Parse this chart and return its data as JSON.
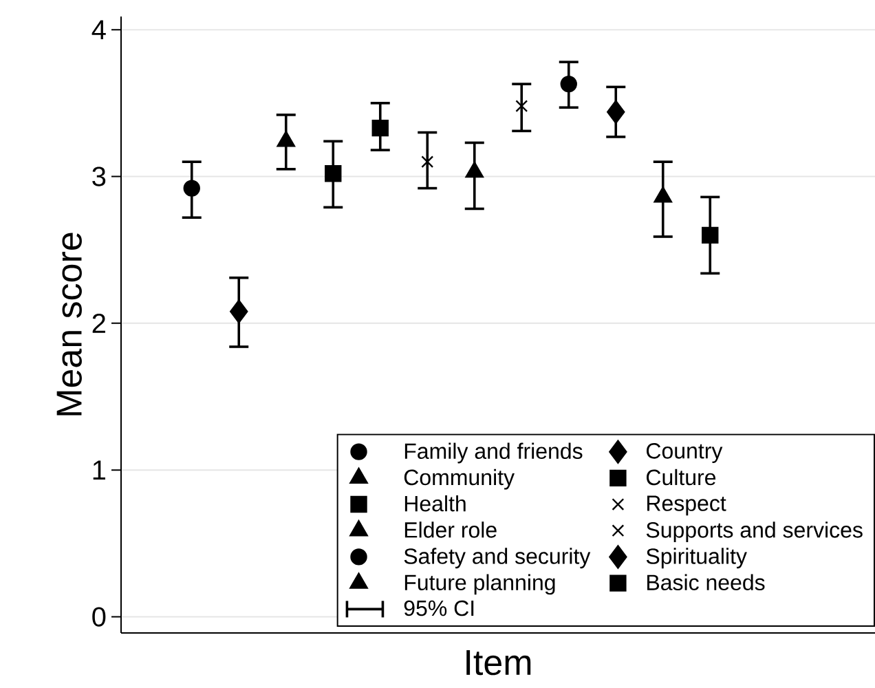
{
  "chart_data": {
    "type": "scatter",
    "xlabel": "Item",
    "ylabel": "Mean score",
    "categories": [
      null,
      null,
      null,
      null,
      null,
      null,
      null,
      null,
      null,
      null,
      null,
      null,
      null,
      null,
      null,
      null
    ],
    "ylim": [
      -0.11,
      4.09
    ],
    "yticks": [
      0,
      1,
      2,
      3,
      4
    ],
    "grid": "y",
    "legend": "bottom right",
    "annotations": [
      "95% CI"
    ],
    "series": [
      {
        "name": "Family and friends",
        "color": "#000000",
        "marker": "circle",
        "values": [
          null,
          2.92,
          null,
          null,
          null,
          null,
          null,
          null,
          null,
          null,
          null,
          null,
          null,
          null,
          null,
          null
        ],
        "errors": [
          null,
          [
            2.72,
            3.1
          ],
          null,
          null,
          null,
          null,
          null,
          null,
          null,
          null,
          null,
          null,
          null,
          null,
          null,
          null
        ]
      },
      {
        "name": "Country",
        "color": "#000000",
        "marker": "diamond",
        "values": [
          null,
          null,
          2.08,
          null,
          null,
          null,
          null,
          null,
          null,
          null,
          null,
          null,
          null,
          null,
          null,
          null
        ],
        "errors": [
          null,
          null,
          [
            1.84,
            2.31
          ],
          null,
          null,
          null,
          null,
          null,
          null,
          null,
          null,
          null,
          null,
          null,
          null,
          null
        ]
      },
      {
        "name": "Community",
        "color": "#000000",
        "marker": "triangle",
        "values": [
          null,
          null,
          null,
          3.24,
          null,
          null,
          null,
          null,
          null,
          null,
          null,
          null,
          null,
          null,
          null,
          null
        ],
        "errors": [
          null,
          null,
          null,
          [
            3.05,
            3.42
          ],
          null,
          null,
          null,
          null,
          null,
          null,
          null,
          null,
          null,
          null,
          null,
          null
        ]
      },
      {
        "name": "Culture",
        "color": "#000000",
        "marker": "square",
        "values": [
          null,
          null,
          null,
          null,
          3.02,
          null,
          null,
          null,
          null,
          null,
          null,
          null,
          null,
          null,
          null,
          null
        ],
        "errors": [
          null,
          null,
          null,
          null,
          [
            2.79,
            3.24
          ],
          null,
          null,
          null,
          null,
          null,
          null,
          null,
          null,
          null,
          null,
          null
        ]
      },
      {
        "name": "Health",
        "color": "#000000",
        "marker": "square",
        "values": [
          null,
          null,
          null,
          null,
          null,
          3.33,
          null,
          null,
          null,
          null,
          null,
          null,
          null,
          null,
          null,
          null
        ],
        "errors": [
          null,
          null,
          null,
          null,
          null,
          [
            3.18,
            3.5
          ],
          null,
          null,
          null,
          null,
          null,
          null,
          null,
          null,
          null,
          null
        ]
      },
      {
        "name": "Respect",
        "color": "#000000",
        "marker": "cross",
        "values": [
          null,
          null,
          null,
          null,
          null,
          null,
          3.1,
          null,
          null,
          null,
          null,
          null,
          null,
          null,
          null,
          null
        ],
        "errors": [
          null,
          null,
          null,
          null,
          null,
          null,
          [
            2.92,
            3.3
          ],
          null,
          null,
          null,
          null,
          null,
          null,
          null,
          null,
          null
        ]
      },
      {
        "name": "Elder role",
        "color": "#000000",
        "marker": "triangle",
        "values": [
          null,
          null,
          null,
          null,
          null,
          null,
          null,
          3.03,
          null,
          null,
          null,
          null,
          null,
          null,
          null,
          null
        ],
        "errors": [
          null,
          null,
          null,
          null,
          null,
          null,
          null,
          [
            2.78,
            3.23
          ],
          null,
          null,
          null,
          null,
          null,
          null,
          null,
          null
        ]
      },
      {
        "name": "Supports and services",
        "color": "#000000",
        "marker": "cross",
        "values": [
          null,
          null,
          null,
          null,
          null,
          null,
          null,
          null,
          3.48,
          null,
          null,
          null,
          null,
          null,
          null,
          null
        ],
        "errors": [
          null,
          null,
          null,
          null,
          null,
          null,
          null,
          null,
          [
            3.31,
            3.63
          ],
          null,
          null,
          null,
          null,
          null,
          null,
          null
        ]
      },
      {
        "name": "Safety and security",
        "color": "#000000",
        "marker": "circle",
        "values": [
          null,
          null,
          null,
          null,
          null,
          null,
          null,
          null,
          null,
          3.63,
          null,
          null,
          null,
          null,
          null,
          null
        ],
        "errors": [
          null,
          null,
          null,
          null,
          null,
          null,
          null,
          null,
          null,
          [
            3.47,
            3.78
          ],
          null,
          null,
          null,
          null,
          null,
          null
        ]
      },
      {
        "name": "Spirituality",
        "color": "#000000",
        "marker": "diamond",
        "values": [
          null,
          null,
          null,
          null,
          null,
          null,
          null,
          null,
          null,
          null,
          3.44,
          null,
          null,
          null,
          null,
          null
        ],
        "errors": [
          null,
          null,
          null,
          null,
          null,
          null,
          null,
          null,
          null,
          null,
          [
            3.27,
            3.61
          ],
          null,
          null,
          null,
          null,
          null
        ]
      },
      {
        "name": "Future planning",
        "color": "#000000",
        "marker": "triangle",
        "values": [
          null,
          null,
          null,
          null,
          null,
          null,
          null,
          null,
          null,
          null,
          null,
          2.86,
          null,
          null,
          null,
          null
        ],
        "errors": [
          null,
          null,
          null,
          null,
          null,
          null,
          null,
          null,
          null,
          null,
          null,
          [
            2.59,
            3.1
          ],
          null,
          null,
          null,
          null
        ]
      },
      {
        "name": "Basic needs",
        "color": "#000000",
        "marker": "square",
        "values": [
          null,
          null,
          null,
          null,
          null,
          null,
          null,
          null,
          null,
          null,
          null,
          null,
          2.6,
          null,
          null,
          null
        ],
        "errors": [
          null,
          null,
          null,
          null,
          null,
          null,
          null,
          null,
          null,
          null,
          null,
          null,
          [
            2.34,
            2.86
          ],
          null,
          null,
          null
        ]
      }
    ]
  }
}
